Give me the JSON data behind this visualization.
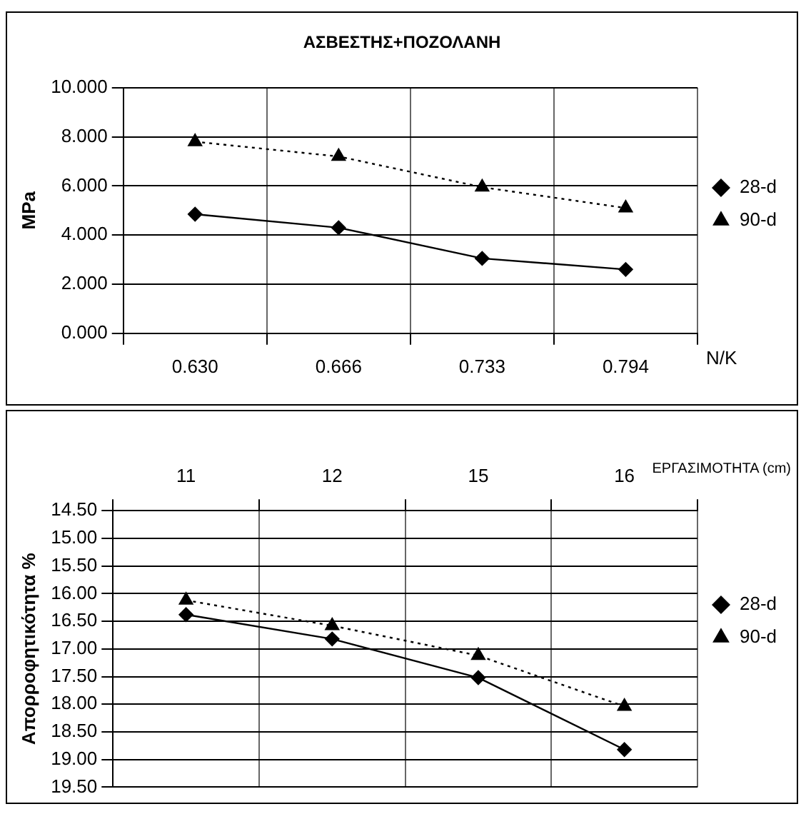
{
  "chart_data": [
    {
      "type": "line",
      "title": "ΑΣΒΕΣΤΗΣ+ΠΟΖΟΛΑΝΗ",
      "xlabel": "N/K",
      "ylabel": "MPa",
      "categories": [
        "0.630",
        "0.666",
        "0.733",
        "0.794"
      ],
      "series": [
        {
          "name": "28-d",
          "color": "#000000",
          "values": [
            4.85,
            4.3,
            3.05,
            2.6
          ],
          "marker": "diamond",
          "line_style": "solid"
        },
        {
          "name": "90-d",
          "color": "#000000",
          "values": [
            7.8,
            7.2,
            5.95,
            5.1
          ],
          "marker": "triangle",
          "line_style": "dotted"
        }
      ],
      "ylim": [
        0,
        10
      ],
      "yticks": [
        {
          "value": 0,
          "label": "0.000"
        },
        {
          "value": 2,
          "label": "2.000"
        },
        {
          "value": 4,
          "label": "4.000"
        },
        {
          "value": 6,
          "label": "6.000"
        },
        {
          "value": 8,
          "label": "8.000"
        },
        {
          "value": 10,
          "label": "10.000"
        }
      ],
      "grid": true,
      "legend": "right"
    },
    {
      "type": "line",
      "xlabel": "ΕΡΓΑΣΙΜΟΤΗΤΑ (cm)",
      "ylabel": "Απορροφητικότητα %",
      "categories": [
        "11",
        "12",
        "15",
        "16"
      ],
      "series": [
        {
          "name": "28-d",
          "color": "#000000",
          "values": [
            16.38,
            16.82,
            17.52,
            18.82
          ],
          "marker": "diamond",
          "line_style": "solid"
        },
        {
          "name": "90-d",
          "color": "#000000",
          "values": [
            16.12,
            16.58,
            17.12,
            18.04
          ],
          "marker": "triangle",
          "line_style": "dotted"
        }
      ],
      "ylim": [
        19.5,
        14.5
      ],
      "yticks": [
        {
          "value": 14.5,
          "label": "14.50"
        },
        {
          "value": 15,
          "label": "15.00"
        },
        {
          "value": 15.5,
          "label": "15.50"
        },
        {
          "value": 16,
          "label": "16.00"
        },
        {
          "value": 16.5,
          "label": "16.50"
        },
        {
          "value": 17,
          "label": "17.00"
        },
        {
          "value": 17.5,
          "label": "17.50"
        },
        {
          "value": 18,
          "label": "18.00"
        },
        {
          "value": 18.5,
          "label": "18.50"
        },
        {
          "value": 19,
          "label": "19.00"
        },
        {
          "value": 19.5,
          "label": "19.50"
        }
      ],
      "grid": true,
      "legend": "right"
    }
  ]
}
